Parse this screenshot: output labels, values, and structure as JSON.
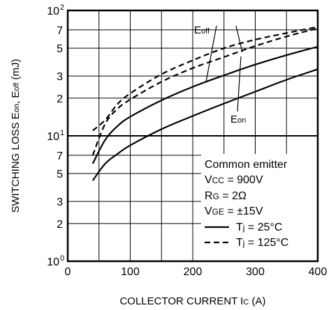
{
  "chart_data": {
    "type": "line",
    "xlabel": "COLLECTOR CURRENT",
    "xlabel_symbol": "I",
    "xlabel_symbol_sub": "C",
    "xlabel_unit": "(A)",
    "ylabel_prefix": "SWITCHING LOSS",
    "ylabel_parts": [
      "E",
      "on",
      ", E",
      "off",
      " (mJ)"
    ],
    "xlim": [
      0,
      400
    ],
    "ylim": [
      1,
      100
    ],
    "yscale": "log",
    "grid": true,
    "x_ticks": [
      0,
      100,
      200,
      300,
      400
    ],
    "x_tick_labels": [
      "0",
      "100",
      "200",
      "300",
      "400"
    ],
    "y_ticks": [
      1,
      2,
      3,
      5,
      7,
      10,
      20,
      30,
      50,
      70,
      100
    ],
    "y_tick_labels": [
      {
        "base": "10",
        "exp": "0"
      },
      {
        "base": "2",
        "exp": ""
      },
      {
        "base": "3",
        "exp": ""
      },
      {
        "base": "5",
        "exp": ""
      },
      {
        "base": "7",
        "exp": ""
      },
      {
        "base": "10",
        "exp": "1"
      },
      {
        "base": "2",
        "exp": ""
      },
      {
        "base": "3",
        "exp": ""
      },
      {
        "base": "5",
        "exp": ""
      },
      {
        "base": "7",
        "exp": ""
      },
      {
        "base": "10",
        "exp": "2"
      }
    ],
    "series": [
      {
        "group": "Eoff",
        "condition": "Tj = 25°C",
        "style": "solid",
        "x": [
          40,
          60,
          80,
          100,
          150,
          200,
          250,
          300,
          350,
          400
        ],
        "y": [
          6.0,
          9.3,
          12.0,
          14.2,
          19.2,
          24.6,
          30.4,
          37.0,
          44.0,
          51.4
        ]
      },
      {
        "group": "Eon",
        "condition": "Tj = 25°C",
        "style": "solid",
        "x": [
          40,
          60,
          80,
          100,
          150,
          200,
          250,
          300,
          350,
          400
        ],
        "y": [
          4.4,
          6.0,
          7.2,
          8.4,
          11.3,
          14.4,
          18.1,
          22.5,
          28.0,
          34.0
        ]
      },
      {
        "group": "Eoff",
        "condition": "Tj = 125°C",
        "style": "dashed",
        "x": [
          40,
          60,
          80,
          100,
          150,
          200,
          250,
          300,
          350,
          400
        ],
        "y": [
          7.0,
          12.5,
          16.5,
          19.5,
          27.0,
          34.7,
          42.5,
          52.0,
          62.0,
          72.0
        ]
      },
      {
        "group": "Eon",
        "condition": "Tj = 125°C",
        "style": "dashed",
        "x": [
          40,
          60,
          80,
          100,
          150,
          200,
          250,
          300,
          350,
          400
        ],
        "y": [
          11.0,
          13.4,
          18.0,
          21.8,
          31.0,
          40.0,
          50.0,
          58.5,
          66.0,
          74.0
        ]
      }
    ],
    "annotations": {
      "eoff": {
        "base": "E",
        "sub": "off"
      },
      "eon": {
        "base": "E",
        "sub": "on"
      }
    },
    "legend": {
      "placement": "bottom-right",
      "lines": [
        {
          "text": "Common emitter"
        },
        {
          "base": "V",
          "sub": "CC",
          "rest": " = 900V"
        },
        {
          "base": "R",
          "sub": "G",
          "rest": " = 2Ω"
        },
        {
          "base": "V",
          "sub": "GE",
          "rest": " = ±15V"
        }
      ],
      "entries": [
        {
          "style": "solid",
          "base": "T",
          "sub": "j",
          "rest": " = 25°C"
        },
        {
          "style": "dashed",
          "base": "T",
          "sub": "j",
          "rest": " = 125°C"
        }
      ]
    }
  }
}
